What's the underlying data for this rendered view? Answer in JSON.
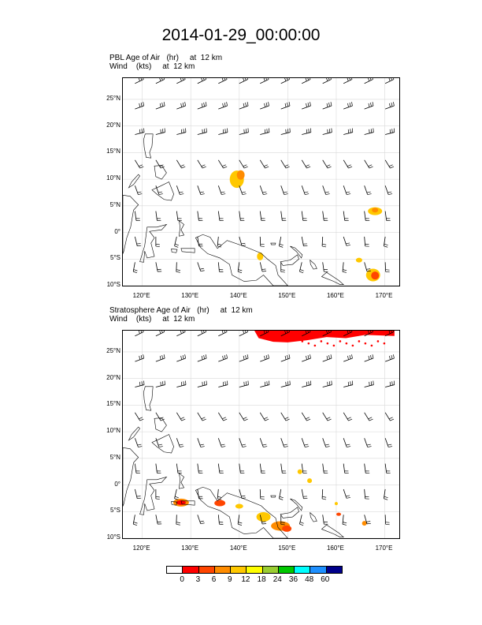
{
  "title": "2014-01-29_00:00:00",
  "panels": [
    {
      "label_line1": "PBL Age of Air   (hr)     at  12 km",
      "label_line2": "Wind    (kts)     at  12 km"
    },
    {
      "label_line1": "Stratosphere Age of Air   (hr)     at  12 km",
      "label_line2": "Wind    (kts)     at  12 km"
    }
  ],
  "axes": {
    "lat_labels": [
      "25°N",
      "20°N",
      "15°N",
      "10°N",
      "5°N",
      "0°",
      "5°S",
      "10°S"
    ],
    "lon_labels": [
      "120°E",
      "130°E",
      "140°E",
      "150°E",
      "160°E",
      "170°E"
    ],
    "lat_range": [
      -10,
      29
    ],
    "lon_range": [
      116,
      173
    ]
  },
  "colorbar": {
    "labels": [
      "0",
      "3",
      "6",
      "9",
      "12",
      "18",
      "24",
      "36",
      "48",
      "60"
    ],
    "colors": [
      "#ffffff",
      "#ff0000",
      "#ff4500",
      "#ff8c00",
      "#ffc800",
      "#ffff00",
      "#9acd32",
      "#00c800",
      "#00ffff",
      "#1e90ff",
      "#00008b"
    ]
  }
}
